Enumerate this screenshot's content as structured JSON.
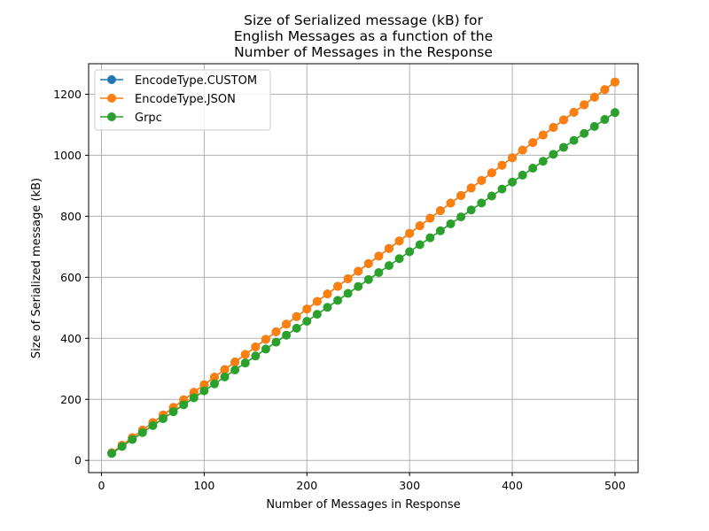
{
  "chart_data": {
    "type": "line",
    "title_lines": [
      "Size of Serialized message (kB) for",
      "English Messages as a function of the",
      "Number of Messages in the Response"
    ],
    "xlabel": "Number of Messages in Response",
    "ylabel": "Size of Serialized message (kB)",
    "xlim": [
      -12.5,
      522.5
    ],
    "ylim": [
      -40,
      1300
    ],
    "xticks": [
      0,
      100,
      200,
      300,
      400,
      500
    ],
    "yticks": [
      0,
      200,
      400,
      600,
      800,
      1000,
      1200
    ],
    "grid": true,
    "legend_position": "top-left",
    "x": [
      10,
      20,
      30,
      40,
      50,
      60,
      70,
      80,
      90,
      100,
      110,
      120,
      130,
      140,
      150,
      160,
      170,
      180,
      190,
      200,
      210,
      220,
      230,
      240,
      250,
      260,
      270,
      280,
      290,
      300,
      310,
      320,
      330,
      340,
      350,
      360,
      370,
      380,
      390,
      400,
      410,
      420,
      430,
      440,
      450,
      460,
      470,
      480,
      490,
      500
    ],
    "series": [
      {
        "name": "EncodeType.CUSTOM",
        "color": "#1f77b4",
        "values": [
          24.8,
          49.6,
          74.4,
          99.2,
          124,
          148.8,
          173.6,
          198.4,
          223.2,
          248,
          272.8,
          297.6,
          322.4,
          347.2,
          372,
          396.8,
          421.6,
          446.4,
          471.2,
          496,
          520.8,
          545.6,
          570.4,
          595.2,
          620,
          644.8,
          669.6,
          694.4,
          719.2,
          744,
          768.8,
          793.6,
          818.4,
          843.2,
          868,
          892.8,
          917.6,
          942.4,
          967.2,
          992,
          1016.8,
          1041.6,
          1066.4,
          1091.2,
          1116,
          1140.8,
          1165.6,
          1190.4,
          1215.2,
          1240
        ]
      },
      {
        "name": "EncodeType.JSON",
        "color": "#ff7f0e",
        "values": [
          24.8,
          49.6,
          74.4,
          99.2,
          124,
          148.8,
          173.6,
          198.4,
          223.2,
          248,
          272.8,
          297.6,
          322.4,
          347.2,
          372,
          396.8,
          421.6,
          446.4,
          471.2,
          496,
          520.8,
          545.6,
          570.4,
          595.2,
          620,
          644.8,
          669.6,
          694.4,
          719.2,
          744,
          768.8,
          793.6,
          818.4,
          843.2,
          868,
          892.8,
          917.6,
          942.4,
          967.2,
          992,
          1016.8,
          1041.6,
          1066.4,
          1091.2,
          1116,
          1140.8,
          1165.6,
          1190.4,
          1215.2,
          1240
        ]
      },
      {
        "name": "Grpc",
        "color": "#2ca02c",
        "values": [
          22.8,
          45.6,
          68.4,
          91.2,
          114,
          136.8,
          159.6,
          182.4,
          205.2,
          228,
          250.8,
          273.6,
          296.4,
          319.2,
          342,
          364.8,
          387.6,
          410.4,
          433.2,
          456,
          478.8,
          501.6,
          524.4,
          547.2,
          570,
          592.8,
          615.6,
          638.4,
          661.2,
          684,
          706.8,
          729.6,
          752.4,
          775.2,
          798,
          820.8,
          843.6,
          866.4,
          889.2,
          912,
          934.8,
          957.6,
          980.4,
          1003.2,
          1026,
          1048.8,
          1071.6,
          1094.4,
          1117.2,
          1140
        ]
      }
    ]
  }
}
